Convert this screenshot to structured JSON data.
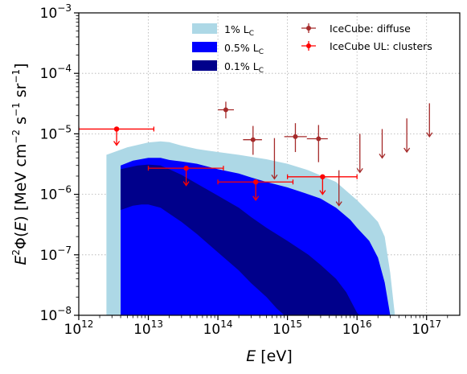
{
  "chart_data": {
    "type": "area",
    "xscale": "log",
    "yscale": "log",
    "xlim": [
      1000000000000.0,
      3e+17
    ],
    "ylim": [
      1e-08,
      0.001
    ],
    "grid": true,
    "legend_placement": "top-right",
    "x_ticks": [
      {
        "base": "10",
        "exp": "12",
        "value": 1000000000000.0
      },
      {
        "base": "10",
        "exp": "13",
        "value": 10000000000000.0
      },
      {
        "base": "10",
        "exp": "14",
        "value": 100000000000000.0
      },
      {
        "base": "10",
        "exp": "15",
        "value": 1000000000000000.0
      },
      {
        "base": "10",
        "exp": "16",
        "value": 1e+16
      },
      {
        "base": "10",
        "exp": "17",
        "value": 1e+17
      }
    ],
    "y_ticks": [
      {
        "base": "10",
        "exp": "−8",
        "value": 1e-08
      },
      {
        "base": "10",
        "exp": "−7",
        "value": 1e-07
      },
      {
        "base": "10",
        "exp": "−6",
        "value": 1e-06
      },
      {
        "base": "10",
        "exp": "−5",
        "value": 1e-05
      },
      {
        "base": "10",
        "exp": "−4",
        "value": 0.0001
      },
      {
        "base": "10",
        "exp": "−3",
        "value": 0.001
      }
    ],
    "xlabel": {
      "var": "E",
      "unit": " [eV]"
    },
    "ylabel": {
      "prefix": "E",
      "sup": "2",
      "mid": "Φ(",
      "var": "E",
      "close": ") [MeV cm",
      "u1": "−2",
      "s": " s",
      "u2": "−1",
      "sr": " sr",
      "u3": "−1",
      "end": "]"
    },
    "bands": [
      {
        "name_main": "1% L",
        "name_sub": "C",
        "color": "#add8e6",
        "upper": [
          [
            2500000000000.0,
            4.5e-06
          ],
          [
            5000000000000.0,
            6e-06
          ],
          [
            10000000000000.0,
            7.2e-06
          ],
          [
            15000000000000.0,
            7.5e-06
          ],
          [
            20000000000000.0,
            7.3e-06
          ],
          [
            30000000000000.0,
            6.4e-06
          ],
          [
            50000000000000.0,
            5.6e-06
          ],
          [
            100000000000000.0,
            5e-06
          ],
          [
            200000000000000.0,
            4.5e-06
          ],
          [
            500000000000000.0,
            3.8e-06
          ],
          [
            1000000000000000.0,
            3.2e-06
          ],
          [
            2000000000000000.0,
            2.5e-06
          ],
          [
            5000000000000000.0,
            1.6e-06
          ],
          [
            1e+16,
            8e-07
          ],
          [
            1.5e+16,
            5e-07
          ],
          [
            2e+16,
            3.5e-07
          ],
          [
            2.5e+16,
            2e-07
          ],
          [
            3e+16,
            5e-08
          ],
          [
            3.5e+16,
            1e-08
          ]
        ],
        "lower": [
          [
            2500000000000.0,
            1e-08
          ],
          [
            3.5e+16,
            1e-08
          ]
        ]
      },
      {
        "name_main": "0.5% L",
        "name_sub": "C",
        "color": "#0000ff",
        "upper": [
          [
            4000000000000.0,
            3e-06
          ],
          [
            6000000000000.0,
            3.6e-06
          ],
          [
            10000000000000.0,
            4e-06
          ],
          [
            15000000000000.0,
            4e-06
          ],
          [
            20000000000000.0,
            3.7e-06
          ],
          [
            30000000000000.0,
            3.5e-06
          ],
          [
            50000000000000.0,
            3.2e-06
          ],
          [
            100000000000000.0,
            2.6e-06
          ],
          [
            200000000000000.0,
            2.2e-06
          ],
          [
            300000000000000.0,
            1.9e-06
          ],
          [
            500000000000000.0,
            1.6e-06
          ],
          [
            1000000000000000.0,
            1.3e-06
          ],
          [
            2000000000000000.0,
            1e-06
          ],
          [
            3000000000000000.0,
            8.5e-07
          ],
          [
            5000000000000000.0,
            6e-07
          ],
          [
            8000000000000000.0,
            3.8e-07
          ],
          [
            1e+16,
            2.8e-07
          ],
          [
            1.5e+16,
            1.7e-07
          ],
          [
            2e+16,
            9e-08
          ],
          [
            2.5e+16,
            3.5e-08
          ],
          [
            3e+16,
            1e-08
          ]
        ],
        "lower": [
          [
            4000000000000.0,
            1e-08
          ],
          [
            3e+16,
            1e-08
          ]
        ]
      },
      {
        "name_main": "0.1% L",
        "name_sub": "C",
        "color": "#00008b",
        "upper": [
          [
            4000000000000.0,
            2.6e-06
          ],
          [
            7000000000000.0,
            3e-06
          ],
          [
            10000000000000.0,
            3.1e-06
          ],
          [
            15000000000000.0,
            3e-06
          ],
          [
            20000000000000.0,
            2.6e-06
          ],
          [
            30000000000000.0,
            2.1e-06
          ],
          [
            50000000000000.0,
            1.5e-06
          ],
          [
            100000000000000.0,
            9.5e-07
          ],
          [
            200000000000000.0,
            6e-07
          ],
          [
            300000000000000.0,
            4.2e-07
          ],
          [
            500000000000000.0,
            2.8e-07
          ],
          [
            1000000000000000.0,
            1.7e-07
          ],
          [
            2000000000000000.0,
            1e-07
          ],
          [
            3000000000000000.0,
            6.8e-08
          ],
          [
            5000000000000000.0,
            4e-08
          ],
          [
            7000000000000000.0,
            2.4e-08
          ],
          [
            1e+16,
            1.1e-08
          ],
          [
            1.1e+16,
            1e-08
          ]
        ],
        "lower": [
          [
            4000000000000.0,
            5.5e-07
          ],
          [
            6000000000000.0,
            6.5e-07
          ],
          [
            8000000000000.0,
            6.8e-07
          ],
          [
            10000000000000.0,
            6.8e-07
          ],
          [
            15000000000000.0,
            6e-07
          ],
          [
            20000000000000.0,
            4.8e-07
          ],
          [
            30000000000000.0,
            3.5e-07
          ],
          [
            50000000000000.0,
            2.2e-07
          ],
          [
            100000000000000.0,
            1.1e-07
          ],
          [
            200000000000000.0,
            5.5e-08
          ],
          [
            300000000000000.0,
            3.4e-08
          ],
          [
            500000000000000.0,
            2e-08
          ],
          [
            700000000000000.0,
            1.3e-08
          ],
          [
            900000000000000.0,
            1e-08
          ]
        ]
      }
    ],
    "white_tail_after": 2.5e+16,
    "series": [
      {
        "name": "IceCube: diffuse",
        "color": "#a52a2a",
        "points": [
          {
            "x": 130000000000000.0,
            "y": 2.5e-05,
            "xerr": [
              100000000000000.0,
              170000000000000.0
            ],
            "yerr": [
              1.8e-05,
              3.4e-05
            ]
          },
          {
            "x": 320000000000000.0,
            "y": 8e-06,
            "xerr": [
              230000000000000.0,
              430000000000000.0
            ],
            "yerr": [
              4.5e-06,
              1.35e-05
            ]
          },
          {
            "x": 1300000000000000.0,
            "y": 9e-06,
            "xerr": [
              900000000000000.0,
              1900000000000000.0
            ],
            "yerr": [
              5e-06,
              1.5e-05
            ]
          },
          {
            "x": 2800000000000000.0,
            "y": 8.3e-06,
            "xerr": [
              1900000000000000.0,
              3800000000000000.0
            ],
            "yerr": [
              3.4e-06,
              1.4e-05
            ]
          }
        ],
        "upper_limits": [
          {
            "x": 650000000000000.0,
            "y": 8.5e-06,
            "to": 1.8e-06
          },
          {
            "x": 5500000000000000.0,
            "y": 2.5e-06,
            "to": 6.5e-07
          },
          {
            "x": 1.1e+16,
            "y": 1e-05,
            "to": 2.3e-06
          },
          {
            "x": 2.3e+16,
            "y": 1.2e-05,
            "to": 4e-06
          },
          {
            "x": 5.2e+16,
            "y": 1.8e-05,
            "to": 5e-06
          },
          {
            "x": 1.1e+17,
            "y": 3.2e-05,
            "to": 9e-06
          }
        ]
      },
      {
        "name": "IceCube UL: clusters",
        "color": "#ff0000",
        "points": [
          {
            "x": 3500000000000.0,
            "y": 1.2e-05,
            "xerr": [
              1000000000000.0,
              12000000000000.0
            ],
            "to": 6.5e-06
          },
          {
            "x": 35000000000000.0,
            "y": 2.7e-06,
            "xerr": [
              10000000000000.0,
              120000000000000.0
            ],
            "to": 1.4e-06
          },
          {
            "x": 350000000000000.0,
            "y": 1.6e-06,
            "xerr": [
              100000000000000.0,
              1200000000000000.0
            ],
            "to": 8e-07
          },
          {
            "x": 3200000000000000.0,
            "y": 1.95e-06,
            "xerr": [
              1000000000000000.0,
              1e+16
            ],
            "to": 1e-06
          }
        ]
      }
    ]
  }
}
